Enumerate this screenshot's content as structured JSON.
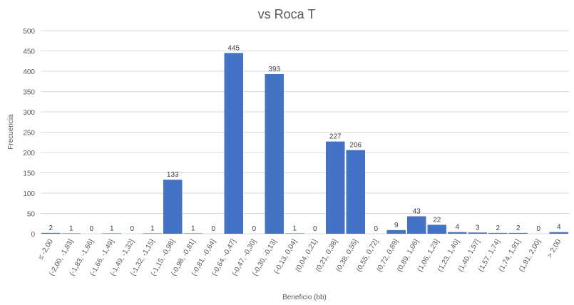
{
  "chart_data": {
    "type": "bar",
    "title": "vs Roca T",
    "xlabel": "Beneficio (bb)",
    "ylabel": "Frecuencia",
    "ylim": [
      0,
      500
    ],
    "yticks": [
      0,
      50,
      100,
      150,
      200,
      250,
      300,
      350,
      400,
      450,
      500
    ],
    "grid": true,
    "legend": "none",
    "bar_color": "#4472c4",
    "categories": [
      "≤ -2,00",
      "(-2,00, -1,83]",
      "(-1,83, -1,66]",
      "(-1,66, -1,49]",
      "(-1,49, -1,32]",
      "(-1,32, -1,15]",
      "(-1,15, -0,98]",
      "(-0,98, -0,81]",
      "(-0,81, -0,64]",
      "(-0,64, -0,47]",
      "(-0,47, -0,30]",
      "(-0,30, -0,13]",
      "(-0,13, 0,04]",
      "(0,04, 0,21]",
      "(0,21, 0,38]",
      "(0,38, 0,55]",
      "(0,55, 0,72]",
      "(0,72, 0,89]",
      "(0,89, 1,06]",
      "(1,06, 1,23]",
      "(1,23, 1,40]",
      "(1,40, 1,57]",
      "(1,57, 1,74]",
      "(1,74, 1,91]",
      "(1,91, 2,00]",
      "> 2,00"
    ],
    "values": [
      2,
      1,
      0,
      1,
      0,
      1,
      133,
      1,
      0,
      445,
      0,
      393,
      1,
      0,
      227,
      206,
      0,
      9,
      43,
      22,
      4,
      3,
      2,
      2,
      0,
      4
    ]
  }
}
